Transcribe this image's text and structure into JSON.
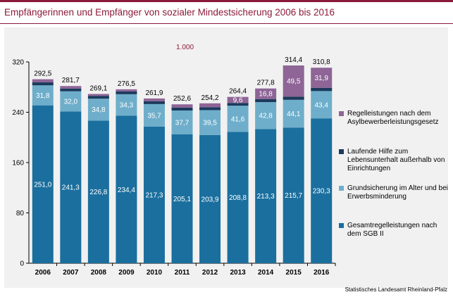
{
  "header": {
    "title": "Empfängerinnen und Empfänger von sozialer Mindestsicherung 2006 bis 2016"
  },
  "footer": {
    "source": "Statistisches Landesamt Rheinland-Pfalz"
  },
  "colors": {
    "accent": "#8b1a3a",
    "gesamtregelleistungen": "#1a6f9e",
    "grundsicherung": "#6eaecb",
    "laufende_hilfe": "#1b3a5c",
    "regelleistungen_asyl": "#8e6596"
  },
  "chart_data": {
    "type": "bar",
    "stacked": true,
    "unit_label": "1.000",
    "categories": [
      "2006",
      "2007",
      "2008",
      "2009",
      "2010",
      "2011",
      "2012",
      "2013",
      "2014",
      "2015",
      "2016"
    ],
    "ylim": [
      0,
      320
    ],
    "yticks": [
      0,
      80,
      160,
      240,
      320
    ],
    "grid": false,
    "legend_position": "right",
    "series": [
      {
        "name": "Gesamtregelleistungen nach dem SGB II",
        "color": "#1a6f9e",
        "values": [
          251.0,
          241.3,
          226.8,
          234.4,
          217.3,
          205.1,
          203.9,
          208.8,
          213.3,
          215.7,
          230.3
        ],
        "labels": [
          "251,0",
          "241,3",
          "226,8",
          "234,4",
          "217,3",
          "205,1",
          "203,9",
          "208,8",
          "213,3",
          "215,7",
          "230,3"
        ]
      },
      {
        "name": "Grundsicherung im Alter und bei Erwerbsminderung",
        "color": "#6eaecb",
        "values": [
          31.8,
          32.0,
          34.8,
          34.3,
          35.7,
          37.7,
          39.5,
          41.6,
          42.8,
          44.1,
          43.4
        ],
        "labels": [
          "31,8",
          "32,0",
          "34,8",
          "34,3",
          "35,7",
          "37,7",
          "39,5",
          "41,6",
          "42,8",
          "44,1",
          "43,4"
        ]
      },
      {
        "name": "Laufende Hilfe zum Lebensunterhalt außerhalb von Einrichtungen",
        "color": "#1b3a5c",
        "values": [
          4.7,
          4.4,
          4.5,
          4.4,
          4.5,
          4.6,
          4.6,
          4.4,
          4.9,
          5.1,
          5.2
        ],
        "labels": []
      },
      {
        "name": "Regelleistungen nach dem Asylbewerberleistungsgesetz",
        "color": "#8e6596",
        "values": [
          5.0,
          4.0,
          3.0,
          3.4,
          4.4,
          5.2,
          6.2,
          9.6,
          16.8,
          49.5,
          31.9
        ],
        "labels": [
          "",
          "",
          "",
          "",
          "",
          "",
          "",
          "9,6",
          "16,8",
          "49,5",
          "31,9"
        ]
      }
    ],
    "totals": [
      "292,5",
      "281,7",
      "269,1",
      "276,5",
      "261,9",
      "252,6",
      "254,2",
      "264,4",
      "277,8",
      "314,4",
      "310,8"
    ]
  }
}
